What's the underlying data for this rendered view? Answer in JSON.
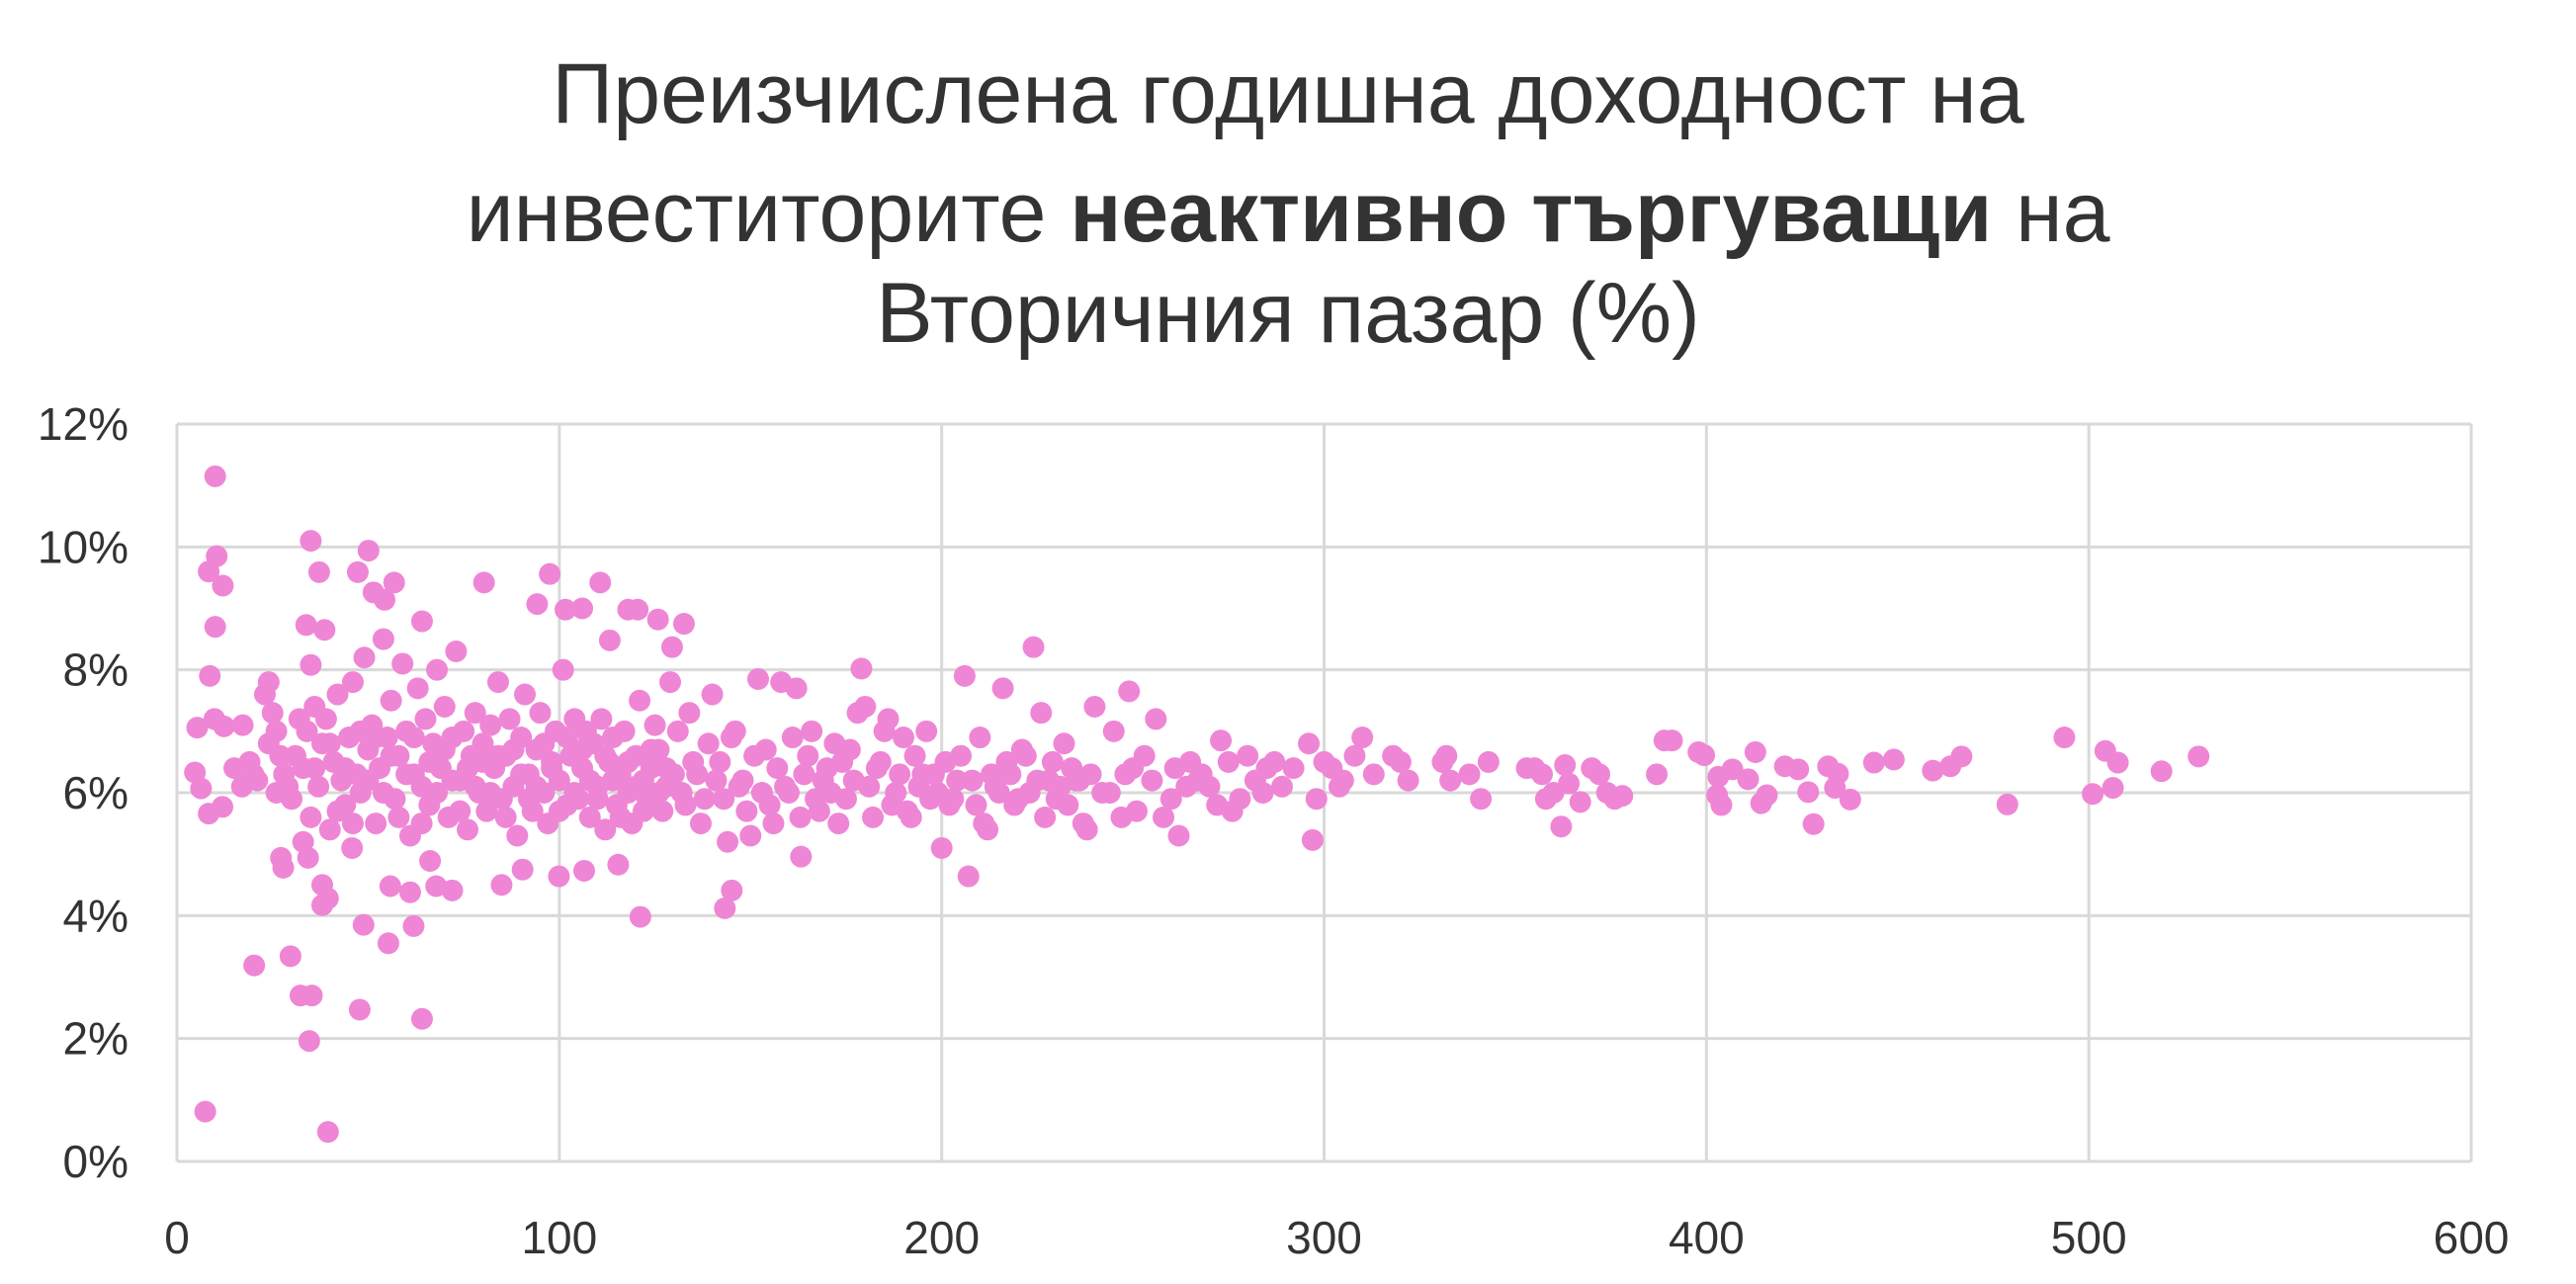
{
  "chart_data": {
    "type": "scatter",
    "title_parts": {
      "line1": "Преизчислена годишна доходност на",
      "line2_pre": "инвеститорите ",
      "line2_bold": "неактивно търгуващи",
      "line2_post": " на",
      "line3": "Вторичния пазар (%)"
    },
    "xlabel": "",
    "ylabel": "",
    "xlim": [
      0,
      600
    ],
    "ylim": [
      0,
      12
    ],
    "x_ticks": [
      "0",
      "100",
      "200",
      "300",
      "400",
      "500",
      "600"
    ],
    "y_ticks": [
      "0%",
      "2%",
      "4%",
      "6%",
      "8%",
      "10%",
      "12%"
    ],
    "grid": true,
    "legend": "none",
    "marker_color": "#ef86d5",
    "grid_color": "#d9d9d9",
    "points": [
      [
        10,
        11.15
      ],
      [
        35,
        10.1
      ],
      [
        8.3,
        9.6
      ],
      [
        10.4,
        9.85
      ],
      [
        12,
        9.37
      ],
      [
        10,
        8.7
      ],
      [
        8.6,
        7.9
      ],
      [
        5.3,
        7.06
      ],
      [
        9.8,
        7.2
      ],
      [
        12.3,
        7.08
      ],
      [
        17.2,
        7.1
      ],
      [
        4.7,
        6.33
      ],
      [
        6.3,
        6.07
      ],
      [
        8.3,
        5.66
      ],
      [
        11.9,
        5.77
      ],
      [
        7.4,
        0.81
      ],
      [
        39.5,
        0.48
      ],
      [
        20.2,
        3.19
      ],
      [
        29.7,
        3.34
      ],
      [
        32.3,
        2.7
      ],
      [
        35.3,
        2.7
      ],
      [
        34.6,
        1.96
      ],
      [
        47.8,
        2.47
      ],
      [
        64.1,
        2.32
      ],
      [
        48.8,
        3.85
      ],
      [
        55.3,
        3.55
      ],
      [
        61.9,
        3.83
      ],
      [
        121.2,
        3.98
      ],
      [
        37.2,
        9.59
      ],
      [
        47.3,
        9.59
      ],
      [
        50.1,
        9.94
      ],
      [
        51.4,
        9.26
      ],
      [
        54.3,
        9.14
      ],
      [
        56.8,
        9.42
      ],
      [
        80.3,
        9.42
      ],
      [
        97.5,
        9.56
      ],
      [
        94.2,
        9.07
      ],
      [
        101.6,
        8.98
      ],
      [
        106,
        9.0
      ],
      [
        110.7,
        9.42
      ],
      [
        118,
        8.98
      ],
      [
        120.5,
        8.98
      ],
      [
        125.8,
        8.82
      ],
      [
        132.6,
        8.75
      ],
      [
        129.5,
        8.37
      ],
      [
        113.2,
        8.48
      ],
      [
        33.8,
        8.73
      ],
      [
        38.6,
        8.65
      ],
      [
        64.1,
        8.79
      ],
      [
        35,
        8.08
      ],
      [
        27.2,
        4.94
      ],
      [
        27.8,
        4.78
      ],
      [
        34.3,
        4.94
      ],
      [
        38,
        4.5
      ],
      [
        38,
        4.17
      ],
      [
        39.5,
        4.28
      ],
      [
        55.8,
        4.48
      ],
      [
        61,
        4.38
      ],
      [
        67.8,
        4.48
      ],
      [
        72,
        4.41
      ],
      [
        84.9,
        4.5
      ],
      [
        90.4,
        4.75
      ],
      [
        99.9,
        4.64
      ],
      [
        106.5,
        4.73
      ],
      [
        115.4,
        4.83
      ],
      [
        143.3,
        4.12
      ],
      [
        145.1,
        4.41
      ],
      [
        163.2,
        4.96
      ],
      [
        45.8,
        5.1
      ],
      [
        66.2,
        4.89
      ],
      [
        15,
        6.4
      ],
      [
        17,
        6.1
      ],
      [
        19,
        6.5
      ],
      [
        21,
        6.2
      ],
      [
        23,
        7.6
      ],
      [
        24,
        7.8
      ],
      [
        24,
        6.8
      ],
      [
        25,
        7.3
      ],
      [
        26,
        6.0
      ],
      [
        27,
        6.6
      ],
      [
        28,
        6.3
      ],
      [
        30,
        5.9
      ],
      [
        31,
        6.6
      ],
      [
        32,
        7.2
      ],
      [
        33,
        6.4
      ],
      [
        34,
        7.0
      ],
      [
        35,
        5.6
      ],
      [
        36,
        7.4
      ],
      [
        37,
        6.1
      ],
      [
        38,
        6.8
      ],
      [
        39,
        7.2
      ],
      [
        40,
        5.4
      ],
      [
        41,
        6.5
      ],
      [
        42,
        7.6
      ],
      [
        43,
        6.2
      ],
      [
        44,
        5.8
      ],
      [
        45,
        6.9
      ],
      [
        46,
        7.8
      ],
      [
        47,
        6.3
      ],
      [
        48,
        6.0
      ],
      [
        49,
        8.2
      ],
      [
        50,
        6.7
      ],
      [
        51,
        7.1
      ],
      [
        52,
        5.5
      ],
      [
        53,
        6.4
      ],
      [
        54,
        8.5
      ],
      [
        55,
        6.9
      ],
      [
        56,
        7.5
      ],
      [
        57,
        5.9
      ],
      [
        58,
        6.6
      ],
      [
        59,
        8.1
      ],
      [
        60,
        7.0
      ],
      [
        61,
        5.3
      ],
      [
        62,
        6.3
      ],
      [
        63,
        7.7
      ],
      [
        64,
        6.1
      ],
      [
        65,
        7.2
      ],
      [
        66,
        5.8
      ],
      [
        67,
        6.8
      ],
      [
        68,
        8.0
      ],
      [
        69,
        6.4
      ],
      [
        70,
        7.4
      ],
      [
        71,
        5.6
      ],
      [
        72,
        6.9
      ],
      [
        73,
        8.3
      ],
      [
        74,
        6.2
      ],
      [
        75,
        7.0
      ],
      [
        76,
        5.4
      ],
      [
        77,
        6.6
      ],
      [
        78,
        7.3
      ],
      [
        79,
        6.0
      ],
      [
        80,
        6.8
      ],
      [
        81,
        5.7
      ],
      [
        82,
        7.1
      ],
      [
        83,
        6.4
      ],
      [
        84,
        7.8
      ],
      [
        85,
        5.9
      ],
      [
        86,
        6.6
      ],
      [
        87,
        7.2
      ],
      [
        88,
        6.1
      ],
      [
        89,
        5.3
      ],
      [
        90,
        6.9
      ],
      [
        91,
        7.6
      ],
      [
        92,
        6.3
      ],
      [
        93,
        5.7
      ],
      [
        94,
        6.7
      ],
      [
        95,
        7.3
      ],
      [
        96,
        6.0
      ],
      [
        97,
        5.5
      ],
      [
        98,
        6.5
      ],
      [
        99,
        7.0
      ],
      [
        100,
        6.2
      ],
      [
        101,
        8.0
      ],
      [
        102,
        5.8
      ],
      [
        103,
        6.6
      ],
      [
        104,
        7.2
      ],
      [
        105,
        5.9
      ],
      [
        106,
        6.4
      ],
      [
        107,
        7.0
      ],
      [
        108,
        5.6
      ],
      [
        109,
        6.8
      ],
      [
        110,
        6.1
      ],
      [
        111,
        7.2
      ],
      [
        112,
        5.4
      ],
      [
        113,
        6.5
      ],
      [
        114,
        6.9
      ],
      [
        115,
        5.8
      ],
      [
        116,
        6.3
      ],
      [
        117,
        7.0
      ],
      [
        118,
        6.0
      ],
      [
        119,
        5.5
      ],
      [
        120,
        6.6
      ],
      [
        121,
        7.5
      ],
      [
        122,
        6.2
      ],
      [
        123,
        5.9
      ],
      [
        124,
        6.7
      ],
      [
        125,
        7.1
      ],
      [
        126,
        6.0
      ],
      [
        127,
        5.7
      ],
      [
        128,
        6.4
      ],
      [
        129,
        7.8
      ],
      [
        130,
        6.3
      ],
      [
        20,
        6.3
      ],
      [
        26,
        7.0
      ],
      [
        29,
        6.1
      ],
      [
        33,
        5.2
      ],
      [
        36,
        6.4
      ],
      [
        40,
        6.8
      ],
      [
        42,
        5.7
      ],
      [
        44,
        6.4
      ],
      [
        46,
        5.5
      ],
      [
        48,
        7.0
      ],
      [
        50,
        6.2
      ],
      [
        52,
        6.9
      ],
      [
        54,
        6.0
      ],
      [
        56,
        6.6
      ],
      [
        58,
        5.6
      ],
      [
        60,
        6.3
      ],
      [
        62,
        6.9
      ],
      [
        64,
        5.5
      ],
      [
        66,
        6.5
      ],
      [
        68,
        6.0
      ],
      [
        70,
        6.7
      ],
      [
        72,
        6.2
      ],
      [
        74,
        5.7
      ],
      [
        76,
        6.4
      ],
      [
        78,
        6.1
      ],
      [
        80,
        6.5
      ],
      [
        82,
        6.0
      ],
      [
        84,
        6.6
      ],
      [
        86,
        5.6
      ],
      [
        88,
        6.7
      ],
      [
        90,
        6.3
      ],
      [
        92,
        5.9
      ],
      [
        94,
        6.1
      ],
      [
        96,
        6.8
      ],
      [
        98,
        6.4
      ],
      [
        100,
        5.7
      ],
      [
        102,
        6.9
      ],
      [
        104,
        6.0
      ],
      [
        106,
        6.7
      ],
      [
        108,
        6.2
      ],
      [
        110,
        5.9
      ],
      [
        112,
        6.6
      ],
      [
        114,
        6.2
      ],
      [
        116,
        5.6
      ],
      [
        118,
        6.5
      ],
      [
        120,
        6.1
      ],
      [
        122,
        5.7
      ],
      [
        124,
        6.4
      ],
      [
        126,
        6.7
      ],
      [
        128,
        6.1
      ],
      [
        131,
        7.0
      ],
      [
        132,
        6.0
      ],
      [
        133,
        5.8
      ],
      [
        134,
        7.3
      ],
      [
        135,
        6.5
      ],
      [
        136,
        6.3
      ],
      [
        137,
        5.5
      ],
      [
        138,
        5.9
      ],
      [
        139,
        6.8
      ],
      [
        140,
        7.6
      ],
      [
        141,
        6.2
      ],
      [
        142,
        6.5
      ],
      [
        143,
        5.9
      ],
      [
        144,
        5.2
      ],
      [
        145,
        6.9
      ],
      [
        146,
        7.0
      ],
      [
        147,
        6.1
      ],
      [
        148,
        6.2
      ],
      [
        149,
        5.7
      ],
      [
        150,
        5.3
      ],
      [
        151,
        6.6
      ],
      [
        152,
        7.85
      ],
      [
        153,
        6.0
      ],
      [
        154,
        6.7
      ],
      [
        155,
        5.8
      ],
      [
        156,
        5.5
      ],
      [
        157,
        6.4
      ],
      [
        158,
        7.8
      ],
      [
        159,
        6.1
      ],
      [
        160,
        6.0
      ],
      [
        161,
        6.9
      ],
      [
        162,
        7.7
      ],
      [
        163,
        5.6
      ],
      [
        164,
        6.3
      ],
      [
        165,
        6.6
      ],
      [
        166,
        7.0
      ],
      [
        167,
        5.9
      ],
      [
        168,
        5.7
      ],
      [
        169,
        6.2
      ],
      [
        170,
        6.4
      ],
      [
        171,
        6.0
      ],
      [
        172,
        6.8
      ],
      [
        173,
        5.5
      ],
      [
        174,
        6.5
      ],
      [
        175,
        5.9
      ],
      [
        176,
        6.7
      ],
      [
        177,
        6.2
      ],
      [
        178,
        7.3
      ],
      [
        179,
        8.02
      ],
      [
        180,
        7.4
      ],
      [
        181,
        6.1
      ],
      [
        182,
        5.6
      ],
      [
        183,
        6.4
      ],
      [
        184,
        6.5
      ],
      [
        185,
        7.0
      ],
      [
        186,
        7.2
      ],
      [
        187,
        5.8
      ],
      [
        188,
        6.0
      ],
      [
        189,
        6.3
      ],
      [
        190,
        6.9
      ],
      [
        191,
        5.7
      ],
      [
        192,
        5.6
      ],
      [
        193,
        6.6
      ],
      [
        194,
        6.1
      ],
      [
        195,
        6.3
      ],
      [
        196,
        7.0
      ],
      [
        197,
        5.9
      ],
      [
        198,
        6.3
      ],
      [
        199,
        6.0
      ],
      [
        200,
        5.1
      ],
      [
        201,
        6.5
      ],
      [
        202,
        5.8
      ],
      [
        203,
        5.9
      ],
      [
        204,
        6.2
      ],
      [
        205,
        6.6
      ],
      [
        206,
        7.9
      ],
      [
        207,
        4.64
      ],
      [
        208,
        6.2
      ],
      [
        209,
        5.8
      ],
      [
        210,
        6.9
      ],
      [
        211,
        5.5
      ],
      [
        212,
        5.4
      ],
      [
        213,
        6.3
      ],
      [
        214,
        6.1
      ],
      [
        215,
        6.0
      ],
      [
        216,
        7.7
      ],
      [
        217,
        6.5
      ],
      [
        218,
        6.3
      ],
      [
        219,
        5.8
      ],
      [
        220,
        5.9
      ],
      [
        221,
        6.7
      ],
      [
        222,
        6.6
      ],
      [
        223,
        6.0
      ],
      [
        224,
        8.37
      ],
      [
        225,
        6.2
      ],
      [
        226,
        7.3
      ],
      [
        227,
        5.6
      ],
      [
        228,
        6.2
      ],
      [
        229,
        6.5
      ],
      [
        230,
        5.9
      ],
      [
        231,
        6.1
      ],
      [
        232,
        6.8
      ],
      [
        233,
        5.8
      ],
      [
        234,
        6.4
      ],
      [
        235,
        6.2
      ],
      [
        236,
        6.2
      ],
      [
        237,
        5.5
      ],
      [
        238,
        5.4
      ],
      [
        239,
        6.3
      ],
      [
        240,
        7.4
      ],
      [
        242,
        6.0
      ],
      [
        244,
        6.0
      ],
      [
        245,
        7.0
      ],
      [
        247,
        5.6
      ],
      [
        248,
        6.3
      ],
      [
        249,
        7.65
      ],
      [
        250,
        6.4
      ],
      [
        251,
        5.7
      ],
      [
        253,
        6.6
      ],
      [
        255,
        6.2
      ],
      [
        256,
        7.2
      ],
      [
        258,
        5.6
      ],
      [
        260,
        5.9
      ],
      [
        261,
        6.4
      ],
      [
        262,
        5.3
      ],
      [
        264,
        6.1
      ],
      [
        265,
        6.5
      ],
      [
        267,
        6.2
      ],
      [
        268,
        6.3
      ],
      [
        270,
        6.1
      ],
      [
        272,
        5.8
      ],
      [
        273,
        6.85
      ],
      [
        275,
        6.5
      ],
      [
        276,
        5.7
      ],
      [
        278,
        5.9
      ],
      [
        280,
        6.6
      ],
      [
        282,
        6.2
      ],
      [
        284,
        6.0
      ],
      [
        285,
        6.4
      ],
      [
        287,
        6.5
      ],
      [
        289,
        6.1
      ],
      [
        292,
        6.4
      ],
      [
        296,
        6.8
      ],
      [
        297,
        5.23
      ],
      [
        298,
        5.9
      ],
      [
        300,
        6.5
      ],
      [
        302,
        6.4
      ],
      [
        304,
        6.1
      ],
      [
        305,
        6.2
      ],
      [
        308,
        6.6
      ],
      [
        310,
        6.9
      ],
      [
        313,
        6.3
      ],
      [
        318,
        6.6
      ],
      [
        320,
        6.5
      ],
      [
        322,
        6.2
      ],
      [
        331,
        6.5
      ],
      [
        332,
        6.6
      ],
      [
        333,
        6.2
      ],
      [
        338,
        6.3
      ],
      [
        341,
        5.9
      ],
      [
        343,
        6.5
      ],
      [
        353,
        6.4
      ],
      [
        355,
        6.4
      ],
      [
        357,
        6.3
      ],
      [
        358,
        5.9
      ],
      [
        360,
        6.0
      ],
      [
        362,
        5.45
      ],
      [
        363,
        6.45
      ],
      [
        364,
        6.15
      ],
      [
        367,
        5.85
      ],
      [
        370,
        6.4
      ],
      [
        372,
        6.3
      ],
      [
        374,
        6.0
      ],
      [
        376,
        5.9
      ],
      [
        378,
        5.95
      ],
      [
        387,
        6.3
      ],
      [
        389,
        6.85
      ],
      [
        391,
        6.85
      ],
      [
        397.9,
        6.66
      ],
      [
        399.4,
        6.61
      ],
      [
        403.1,
        6.26
      ],
      [
        406.8,
        6.38
      ],
      [
        410.9,
        6.22
      ],
      [
        412.8,
        6.66
      ],
      [
        402.8,
        5.96
      ],
      [
        403.9,
        5.8
      ],
      [
        414.3,
        5.83
      ],
      [
        415.8,
        5.96
      ],
      [
        420.5,
        6.43
      ],
      [
        424,
        6.38
      ],
      [
        426.6,
        6.01
      ],
      [
        428,
        5.49
      ],
      [
        431.8,
        6.43
      ],
      [
        434.4,
        6.31
      ],
      [
        433.6,
        6.08
      ],
      [
        437.6,
        5.89
      ],
      [
        443.8,
        6.49
      ],
      [
        449,
        6.54
      ],
      [
        459.2,
        6.36
      ],
      [
        463.8,
        6.43
      ],
      [
        466.7,
        6.59
      ],
      [
        478.7,
        5.81
      ],
      [
        493.6,
        6.9
      ],
      [
        501,
        5.98
      ],
      [
        504.3,
        6.68
      ],
      [
        507.6,
        6.49
      ],
      [
        506.3,
        6.08
      ],
      [
        519,
        6.35
      ],
      [
        528.7,
        6.59
      ]
    ]
  }
}
